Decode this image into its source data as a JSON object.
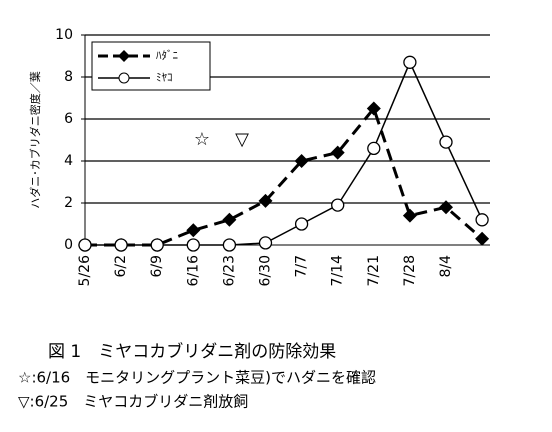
{
  "chart_data": {
    "type": "line",
    "y_label": "ハダニ･カブリダニ密度／葉",
    "categories": [
      "5/26",
      "6/2",
      "6/9",
      "6/16",
      "6/23",
      "6/30",
      "7/7",
      "7/14",
      "7/21",
      "7/28",
      "8/4",
      null
    ],
    "series": [
      {
        "name": "ﾊﾀﾞﾆ",
        "color": "#000000",
        "marker": "diamond",
        "dashed": true,
        "values": [
          0,
          0,
          0,
          0.7,
          1.2,
          2.1,
          4.0,
          4.4,
          6.5,
          1.4,
          1.8,
          0.3
        ]
      },
      {
        "name": "ﾐﾔｺ",
        "color": "#000000",
        "marker": "circle",
        "dashed": false,
        "values": [
          0,
          0,
          0,
          0,
          0,
          0.1,
          1.0,
          1.9,
          4.6,
          8.7,
          4.9,
          1.2
        ]
      }
    ],
    "ylim": [
      0,
      10
    ],
    "yticks": [
      0,
      2,
      4,
      6,
      8,
      10
    ],
    "grid": true,
    "legend": "upper left",
    "annotations": [
      {
        "text": "☆"
      },
      {
        "text": "▽"
      }
    ],
    "caption": [
      "図 1　ミヤコカブリダニ剤の防除効果",
      "☆:6/16　モニタリングプラント菜豆)でハダニを確認",
      "▽:6/25　ミヤコカブリダニ剤放飼"
    ]
  }
}
